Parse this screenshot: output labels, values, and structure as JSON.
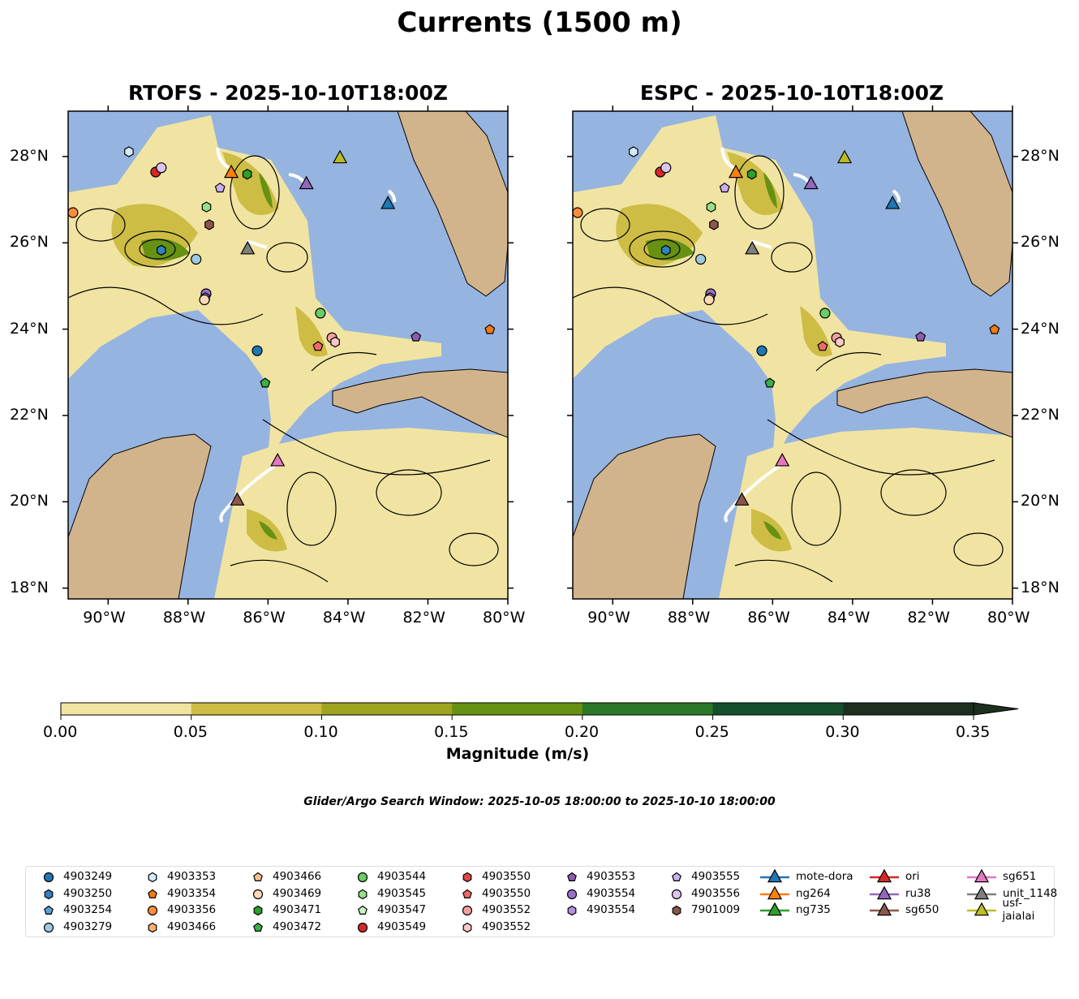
{
  "title": "Currents (1500 m)",
  "panels": [
    {
      "title": "RTOFS - 2025-10-10T18:00Z"
    },
    {
      "title": "ESPC - 2025-10-10T18:00Z"
    }
  ],
  "lon_ticks": [
    "90°W",
    "88°W",
    "86°W",
    "84°W",
    "82°W",
    "80°W"
  ],
  "lat_ticks": [
    "28°N",
    "26°N",
    "24°N",
    "22°N",
    "20°N",
    "18°N"
  ],
  "colorbar": {
    "label": "Magnitude (m/s)",
    "ticks": [
      "0.00",
      "0.05",
      "0.10",
      "0.15",
      "0.20",
      "0.25",
      "0.30",
      "0.35"
    ],
    "colors": [
      "#f1e4a2",
      "#cdbd45",
      "#9fa41e",
      "#679112",
      "#2b7826",
      "#13502b",
      "#1d2f1e"
    ]
  },
  "search_window": "Glider/Argo Search Window: 2025-10-05 18:00:00 to 2025-10-10 18:00:00",
  "colors": {
    "ocean": "#96b4e0",
    "land": "#d2b48c"
  },
  "chart_data": {
    "type": "map",
    "xlim": [
      -91,
      -80
    ],
    "ylim": [
      17.75,
      29.05
    ],
    "markers": [
      {
        "id": "4903353",
        "shape": "hex",
        "color": "#d4ebf8",
        "lon": -89.48,
        "lat": 28.11
      },
      {
        "id": "4903549",
        "shape": "circle",
        "color": "#d62728",
        "lon": -88.81,
        "lat": 27.64
      },
      {
        "id": "4903556",
        "shape": "circle",
        "color": "#dcc6f0",
        "lon": -88.67,
        "lat": 27.74
      },
      {
        "id": "4903356",
        "shape": "circle",
        "color": "#fd8d3c",
        "lon": -90.88,
        "lat": 26.7
      },
      {
        "id": "ng264",
        "shape": "tri",
        "color": "#ff7f0e",
        "lon": -86.92,
        "lat": 27.62
      },
      {
        "id": "4903471",
        "shape": "hex",
        "color": "#2ca02c",
        "lon": -86.52,
        "lat": 27.59
      },
      {
        "id": "4903555",
        "shape": "pent",
        "color": "#c9b0f0",
        "lon": -87.2,
        "lat": 27.27
      },
      {
        "id": "4903545",
        "shape": "hex",
        "color": "#98df8a",
        "lon": -87.54,
        "lat": 26.83
      },
      {
        "id": "7901009",
        "shape": "hex",
        "color": "#8c564b",
        "lon": -87.47,
        "lat": 26.42
      },
      {
        "id": "usf-jaialai",
        "shape": "tri",
        "color": "#bcbd22",
        "lon": -84.2,
        "lat": 27.96
      },
      {
        "id": "ru38",
        "shape": "tri",
        "color": "#9467bd",
        "lon": -85.04,
        "lat": 27.36
      },
      {
        "id": "mote-dora",
        "shape": "tri",
        "color": "#1f77b4",
        "lon": -83.0,
        "lat": 26.9
      },
      {
        "id": "unit_1148",
        "shape": "tri",
        "color": "#7f7f7f",
        "lon": -86.51,
        "lat": 25.85
      },
      {
        "id": "4903250",
        "shape": "hex",
        "color": "#3182bd",
        "lon": -88.67,
        "lat": 25.83
      },
      {
        "id": "4903279",
        "shape": "circle",
        "color": "#9ecae1",
        "lon": -87.8,
        "lat": 25.62
      },
      {
        "id": "4903554",
        "shape": "circle",
        "color": "#9e6fcf",
        "lon": -87.55,
        "lat": 24.82
      },
      {
        "id": "4903554",
        "shape": "hex",
        "color": "#b291e0",
        "lon": -87.57,
        "lat": 24.73
      },
      {
        "id": "4903469",
        "shape": "circle",
        "color": "#fdd9b5",
        "lon": -87.59,
        "lat": 24.68
      },
      {
        "id": "4903544",
        "shape": "circle",
        "color": "#6acc64",
        "lon": -84.69,
        "lat": 24.37
      },
      {
        "id": "4903552",
        "shape": "circle",
        "color": "#f4a0a0",
        "lon": -84.4,
        "lat": 23.8
      },
      {
        "id": "4903552",
        "shape": "hex",
        "color": "#fcc8c8",
        "lon": -84.32,
        "lat": 23.7
      },
      {
        "id": "4903550",
        "shape": "pent",
        "color": "#f06a6a",
        "lon": -84.75,
        "lat": 23.6
      },
      {
        "id": "4903249",
        "shape": "circle",
        "color": "#1f77b4",
        "lon": -86.27,
        "lat": 23.5
      },
      {
        "id": "4903553",
        "shape": "pent",
        "color": "#8e5bb0",
        "lon": -82.3,
        "lat": 23.82
      },
      {
        "id": "4903354",
        "shape": "pent",
        "color": "#f57a10",
        "lon": -80.45,
        "lat": 23.99
      },
      {
        "id": "4903472",
        "shape": "pent",
        "color": "#3cb043",
        "lon": -86.07,
        "lat": 22.75
      },
      {
        "id": "sg651",
        "shape": "tri",
        "color": "#e377c2",
        "lon": -85.76,
        "lat": 20.94
      },
      {
        "id": "sg650",
        "shape": "tri",
        "color": "#8c564b",
        "lon": -86.77,
        "lat": 20.03
      }
    ]
  },
  "legend": [
    {
      "label": "4903249",
      "shape": "circle",
      "color": "#1f77b4"
    },
    {
      "label": "4903250",
      "shape": "hex",
      "color": "#3182bd"
    },
    {
      "label": "4903254",
      "shape": "pent",
      "color": "#5aa0d6"
    },
    {
      "label": "4903279",
      "shape": "circle",
      "color": "#9ecae1"
    },
    {
      "label": "4903353",
      "shape": "hex",
      "color": "#d4ebf8"
    },
    {
      "label": "4903354",
      "shape": "pent",
      "color": "#f57a10"
    },
    {
      "label": "4903356",
      "shape": "circle",
      "color": "#fd8d3c"
    },
    {
      "label": "4903466",
      "shape": "hex",
      "color": "#fdae6b"
    },
    {
      "label": "4903466",
      "shape": "pent",
      "color": "#fdc08c"
    },
    {
      "label": "4903469",
      "shape": "circle",
      "color": "#fdd9b5"
    },
    {
      "label": "4903471",
      "shape": "hex",
      "color": "#2ca02c"
    },
    {
      "label": "4903472",
      "shape": "pent",
      "color": "#3cb043"
    },
    {
      "label": "4903544",
      "shape": "circle",
      "color": "#6acc64"
    },
    {
      "label": "4903545",
      "shape": "hex",
      "color": "#98df8a"
    },
    {
      "label": "4903547",
      "shape": "pent",
      "color": "#c7f5c0"
    },
    {
      "label": "4903549",
      "shape": "circle",
      "color": "#d62728"
    },
    {
      "label": "4903550",
      "shape": "hex",
      "color": "#e04848"
    },
    {
      "label": "4903550",
      "shape": "pent",
      "color": "#f06a6a"
    },
    {
      "label": "4903552",
      "shape": "circle",
      "color": "#f4a0a0"
    },
    {
      "label": "4903552",
      "shape": "hex",
      "color": "#fcc8c8"
    },
    {
      "label": "4903553",
      "shape": "pent",
      "color": "#8e5bb0"
    },
    {
      "label": "4903554",
      "shape": "circle",
      "color": "#9e6fcf"
    },
    {
      "label": "4903554",
      "shape": "hex",
      "color": "#b291e0"
    },
    {
      "label": "4903555",
      "shape": "pent",
      "color": "#c9b0f0"
    },
    {
      "label": "4903556",
      "shape": "circle",
      "color": "#dcc6f0"
    },
    {
      "label": "7901009",
      "shape": "hex",
      "color": "#8c564b"
    },
    {
      "label": "mote-dora",
      "shape": "tri",
      "color": "#1f77b4"
    },
    {
      "label": "ng264",
      "shape": "tri",
      "color": "#ff7f0e"
    },
    {
      "label": "ng735",
      "shape": "tri",
      "color": "#2ca02c"
    },
    {
      "label": "ori",
      "shape": "tri",
      "color": "#d62728"
    },
    {
      "label": "ru38",
      "shape": "tri",
      "color": "#9467bd"
    },
    {
      "label": "sg650",
      "shape": "tri",
      "color": "#8c564b"
    },
    {
      "label": "sg651",
      "shape": "tri",
      "color": "#e377c2"
    },
    {
      "label": "unit_1148",
      "shape": "tri",
      "color": "#7f7f7f"
    },
    {
      "label": "usf-jaialai",
      "shape": "tri",
      "color": "#bcbd22"
    }
  ]
}
